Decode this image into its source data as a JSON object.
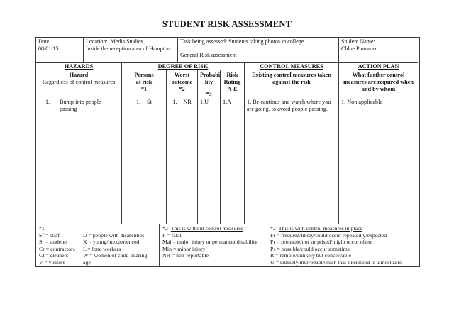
{
  "page": {
    "title": "STUDENT RISK ASSESSMENT"
  },
  "info": {
    "date_label": "Date",
    "date_value": "08/01/15",
    "location_line1": "Location:  Media Studies",
    "location_line2": "Inside the reception area of Hampton",
    "task_line1": "Task being assessed: Students taking photos in college",
    "task_line2": "General Risk assessment",
    "student_label": "Student Name:",
    "student_value": "Chloe Plummer"
  },
  "band": {
    "hazards": "HAZARDS",
    "degree": "DEGREE OF RISK",
    "control": "CONTROL MEASURES",
    "action": "ACTION PLAN"
  },
  "subhead": {
    "hazard_title": "Hazard",
    "hazard_sub": "Regardless of control measures",
    "persons": [
      "Persons",
      "at risk",
      "*1"
    ],
    "worst": [
      "Worst",
      "outcome",
      "*2"
    ],
    "probability": [
      "Probabi",
      "lity",
      "*3"
    ],
    "risk": [
      "Risk",
      "Rating",
      "A-E"
    ],
    "existing": "Existing control measures taken against the risk",
    "further": "What further control measures are required when and by whom"
  },
  "entry": {
    "hazard_num": "1.",
    "hazard_text": "Bump into people passing",
    "persons_num": "1.",
    "persons_value": "St",
    "worst_num": "1.",
    "worst_value": "NR",
    "probability": "1.U",
    "rating": "1.A",
    "control": "1. Be cautious and watch where you are going, to avoid people passing.",
    "action": "1. Non applicable"
  },
  "legend1": {
    "title": "*1",
    "left": [
      "Sf = staff",
      "St = students",
      "Cr = contractors",
      "Cl = cleaners",
      "V = visitors"
    ],
    "right": [
      "D = people with disabilities",
      "X = young/inexperienced",
      "L = lone workers",
      "W = women of child-bearing",
      "age"
    ]
  },
  "legend2": {
    "marker": "*2",
    "title": "This is without control measures",
    "lines": [
      "F = fatal",
      "Maj = major injury or permanent disability",
      "Min = minor injury",
      "NR = non-reportable"
    ]
  },
  "legend3": {
    "marker": "*3",
    "title": "This is with control measures in place",
    "lines": [
      "Fr = frequent/likely/could occur repeatedly/expected",
      "Pr = probable/not surprised/might occur often",
      "Ps = possible/could occur sometime",
      "R = remote/unlikely but conceivable",
      "U = unlikely/improbable such that likelihood is almost zero"
    ]
  }
}
